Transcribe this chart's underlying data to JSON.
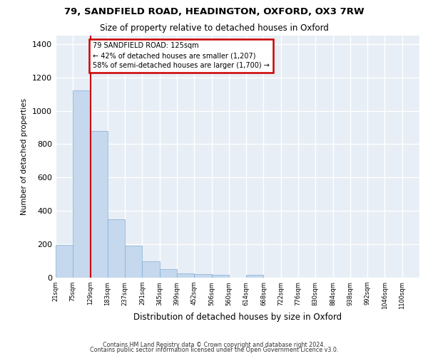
{
  "title_line1": "79, SANDFIELD ROAD, HEADINGTON, OXFORD, OX3 7RW",
  "title_line2": "Size of property relative to detached houses in Oxford",
  "xlabel": "Distribution of detached houses by size in Oxford",
  "ylabel": "Number of detached properties",
  "bin_labels": [
    "21sqm",
    "75sqm",
    "129sqm",
    "183sqm",
    "237sqm",
    "291sqm",
    "345sqm",
    "399sqm",
    "452sqm",
    "506sqm",
    "560sqm",
    "614sqm",
    "668sqm",
    "722sqm",
    "776sqm",
    "830sqm",
    "884sqm",
    "938sqm",
    "992sqm",
    "1046sqm",
    "1100sqm"
  ],
  "bar_values": [
    197,
    1120,
    880,
    350,
    193,
    100,
    52,
    25,
    22,
    17,
    0,
    15,
    0,
    0,
    0,
    0,
    0,
    0,
    0,
    0,
    0
  ],
  "bar_color": "#c5d8ee",
  "bar_edge_color": "#7fafd4",
  "vline_x": 2,
  "vline_color": "#cc0000",
  "annotation_line1": "79 SANDFIELD ROAD: 125sqm",
  "annotation_line2": "← 42% of detached houses are smaller (1,207)",
  "annotation_line3": "58% of semi-detached houses are larger (1,700) →",
  "annotation_box_edgecolor": "#cc0000",
  "ylim": [
    0,
    1450
  ],
  "yticks": [
    0,
    200,
    400,
    600,
    800,
    1000,
    1200,
    1400
  ],
  "bg_color": "#e8eef5",
  "grid_color": "#ffffff",
  "footer_line1": "Contains HM Land Registry data © Crown copyright and database right 2024.",
  "footer_line2": "Contains public sector information licensed under the Open Government Licence v3.0."
}
